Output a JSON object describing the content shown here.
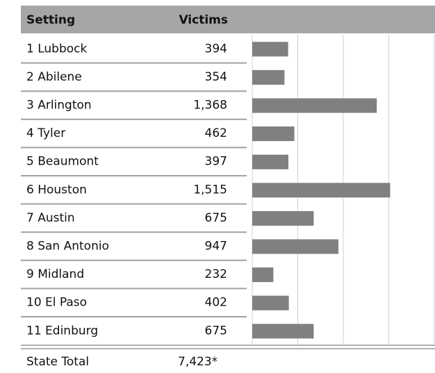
{
  "chart_data": {
    "type": "bar",
    "column_headers": [
      "Setting",
      "Victims"
    ],
    "categories": [
      "1 Lubbock",
      "2 Abilene",
      "3 Arlington",
      "4 Tyler",
      "5 Beaumont",
      "6 Houston",
      "7 Austin",
      "8 San Antonio",
      "9 Midland",
      "10 El Paso",
      "11 Edinburg"
    ],
    "values": [
      394,
      354,
      1368,
      462,
      397,
      1515,
      675,
      947,
      232,
      402,
      675
    ],
    "value_labels": [
      "394",
      "354",
      "1,368",
      "462",
      "397",
      "1,515",
      "675",
      "947",
      "232",
      "402",
      "675"
    ],
    "color": "#808080",
    "xlim": [
      0,
      2000
    ],
    "xticks": [
      0,
      500,
      1000,
      1500,
      2000
    ],
    "grid": true,
    "total_name": "State Total",
    "total_label": "7,423*"
  }
}
